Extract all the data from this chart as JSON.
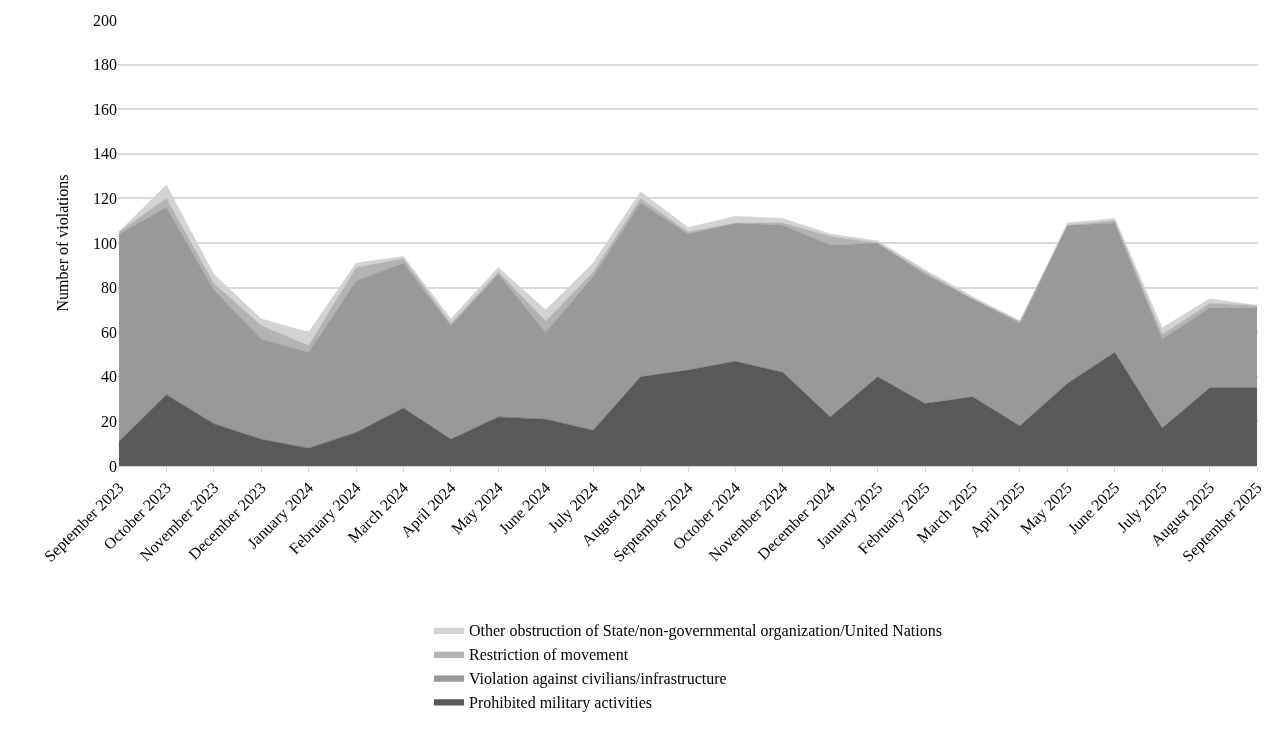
{
  "chart_data": {
    "type": "area",
    "stacked": true,
    "ylabel": "Number of violations",
    "categories": [
      "September 2023",
      "October 2023",
      "November 2023",
      "December 2023",
      "January 2024",
      "February 2024",
      "March 2024",
      "April 2024",
      "May 2024",
      "June 2024",
      "July 2024",
      "August 2024",
      "September 2024",
      "October 2024",
      "November 2024",
      "December 2024",
      "January 2025",
      "February 2025",
      "March 2025",
      "April 2025",
      "May 2025",
      "June 2025",
      "July 2025",
      "August 2025",
      "September 2025"
    ],
    "series": [
      {
        "name": "Prohibited military activities",
        "color": "#595959",
        "values": [
          11,
          32,
          19,
          12,
          8,
          15,
          26,
          12,
          22,
          21,
          16,
          40,
          43,
          47,
          42,
          22,
          40,
          28,
          31,
          18,
          37,
          51,
          17,
          35,
          35
        ]
      },
      {
        "name": "Violation against civilians/infrastructure",
        "color": "#999999",
        "values": [
          93,
          84,
          60,
          45,
          43,
          68,
          65,
          51,
          64,
          39,
          69,
          78,
          61,
          62,
          66,
          77,
          60,
          58,
          44,
          46,
          71,
          58,
          40,
          36,
          36
        ]
      },
      {
        "name": "Restriction of movement",
        "color": "#b3b3b3",
        "values": [
          1,
          4,
          3,
          6,
          3,
          6,
          2,
          1,
          1,
          5,
          2,
          2,
          1,
          0,
          1,
          4,
          0,
          1,
          0,
          1,
          0,
          1,
          2,
          2,
          1
        ]
      },
      {
        "name": "Other obstruction of State/non-governmental organization/United Nations",
        "color": "#d3d3d3",
        "values": [
          0,
          6,
          4,
          3,
          6,
          2,
          1,
          2,
          2,
          5,
          4,
          3,
          2,
          3,
          2,
          1,
          1,
          1,
          1,
          0,
          1,
          1,
          3,
          2,
          0
        ]
      }
    ],
    "ylim": [
      0,
      200
    ],
    "yticks": [
      0,
      20,
      40,
      60,
      80,
      100,
      120,
      140,
      160,
      180,
      200
    ],
    "grid": "y",
    "legend": "bottom"
  }
}
